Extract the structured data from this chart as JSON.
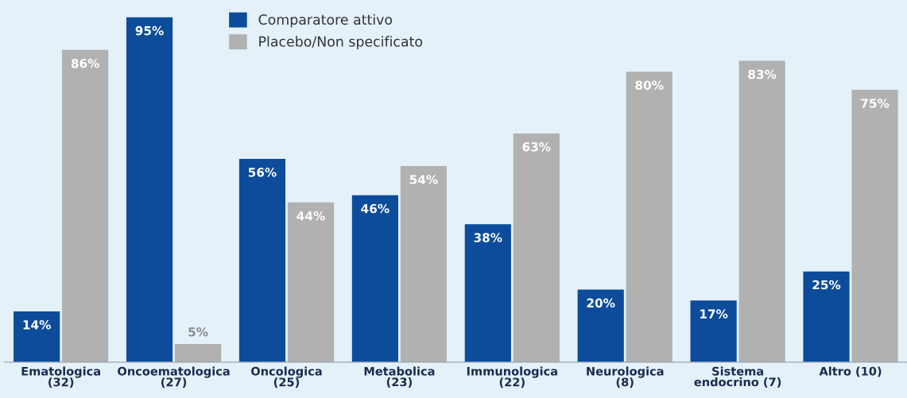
{
  "chart_data": {
    "type": "bar",
    "categories": [
      "Ematologica\n(32)",
      "Oncoematologica\n(27)",
      "Oncologica\n(25)",
      "Metabolica\n(23)",
      "Immunologica\n(22)",
      "Neurologica\n(8)",
      "Sistema\nendocrino (7)",
      "Altro (10)"
    ],
    "series": [
      {
        "name": "Comparatore attivo",
        "color": "#0c4c9a",
        "values": [
          14,
          95,
          56,
          46,
          38,
          20,
          17,
          25
        ],
        "value_labels": [
          "14%",
          "95%",
          "56%",
          "46%",
          "38%",
          "20%",
          "17%",
          "25%"
        ]
      },
      {
        "name": "Placebo/Non specificato",
        "color": "#b1b1b1",
        "values": [
          86,
          5,
          44,
          54,
          63,
          80,
          83,
          75
        ],
        "value_labels": [
          "86%",
          "5%",
          "44%",
          "54%",
          "63%",
          "80%",
          "83%",
          "75%"
        ]
      }
    ],
    "legend": "top",
    "grid": false
  }
}
